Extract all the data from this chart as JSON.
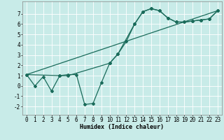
{
  "title": "",
  "xlabel": "Humidex (Indice chaleur)",
  "ylabel": "",
  "background_color": "#c8ebe8",
  "grid_color": "#ffffff",
  "line_color": "#1a6b5a",
  "xlim": [
    -0.5,
    23.5
  ],
  "ylim": [
    -2.8,
    8.2
  ],
  "xticks": [
    0,
    1,
    2,
    3,
    4,
    5,
    6,
    7,
    8,
    9,
    10,
    11,
    12,
    13,
    14,
    15,
    16,
    17,
    18,
    19,
    20,
    21,
    22,
    23
  ],
  "yticks": [
    -2,
    -1,
    0,
    1,
    2,
    3,
    4,
    5,
    6,
    7
  ],
  "series1_x": [
    0,
    1,
    2,
    3,
    4,
    5,
    6,
    7,
    8,
    9,
    10,
    11,
    12,
    13,
    14,
    15,
    16,
    17,
    18,
    19,
    20,
    21,
    22,
    23
  ],
  "series1_y": [
    1.1,
    0.0,
    0.9,
    -0.5,
    1.0,
    1.1,
    1.1,
    -1.8,
    -1.7,
    0.3,
    2.2,
    3.1,
    4.3,
    6.0,
    7.2,
    7.5,
    7.3,
    6.6,
    6.2,
    6.2,
    6.3,
    6.4,
    6.5,
    7.3
  ],
  "series2_x": [
    0,
    4,
    5,
    10,
    11,
    13,
    14,
    15,
    16,
    17,
    18,
    19,
    20,
    21,
    22,
    23
  ],
  "series2_y": [
    1.1,
    1.0,
    1.0,
    2.2,
    3.1,
    6.0,
    7.2,
    7.5,
    7.3,
    6.6,
    6.2,
    6.2,
    6.3,
    6.4,
    6.5,
    7.3
  ],
  "series3_x": [
    0,
    23
  ],
  "series3_y": [
    1.1,
    7.3
  ],
  "font_size_label": 6,
  "font_size_tick": 5.5
}
